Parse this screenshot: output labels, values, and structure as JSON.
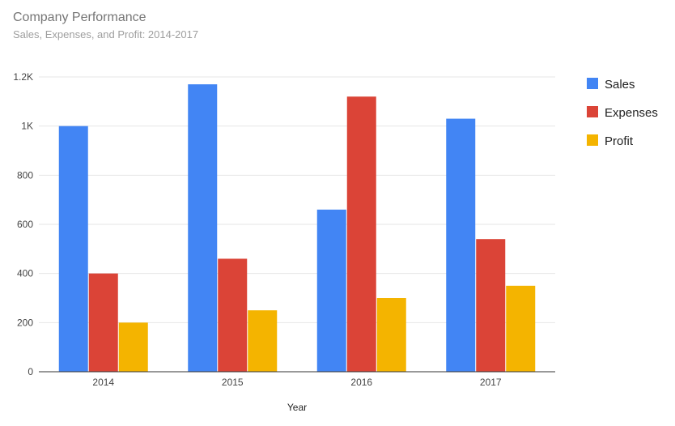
{
  "chart_data": {
    "type": "bar",
    "title": "Company Performance",
    "subtitle": "Sales, Expenses, and Profit: 2014-2017",
    "xlabel": "Year",
    "ylabel": "",
    "categories": [
      "2014",
      "2015",
      "2016",
      "2017"
    ],
    "series": [
      {
        "name": "Sales",
        "color": "#4285f4",
        "values": [
          1000,
          1170,
          660,
          1030
        ]
      },
      {
        "name": "Expenses",
        "color": "#db4437",
        "values": [
          400,
          460,
          1120,
          540
        ]
      },
      {
        "name": "Profit",
        "color": "#f4b400",
        "values": [
          200,
          250,
          300,
          350
        ]
      }
    ],
    "ylim": [
      0,
      1200
    ],
    "yticks": [
      0,
      200,
      400,
      600,
      800,
      1000,
      1200
    ],
    "ytick_labels": [
      "0",
      "200",
      "400",
      "600",
      "800",
      "1K",
      "1.2K"
    ],
    "grid": true,
    "legend_position": "right"
  }
}
